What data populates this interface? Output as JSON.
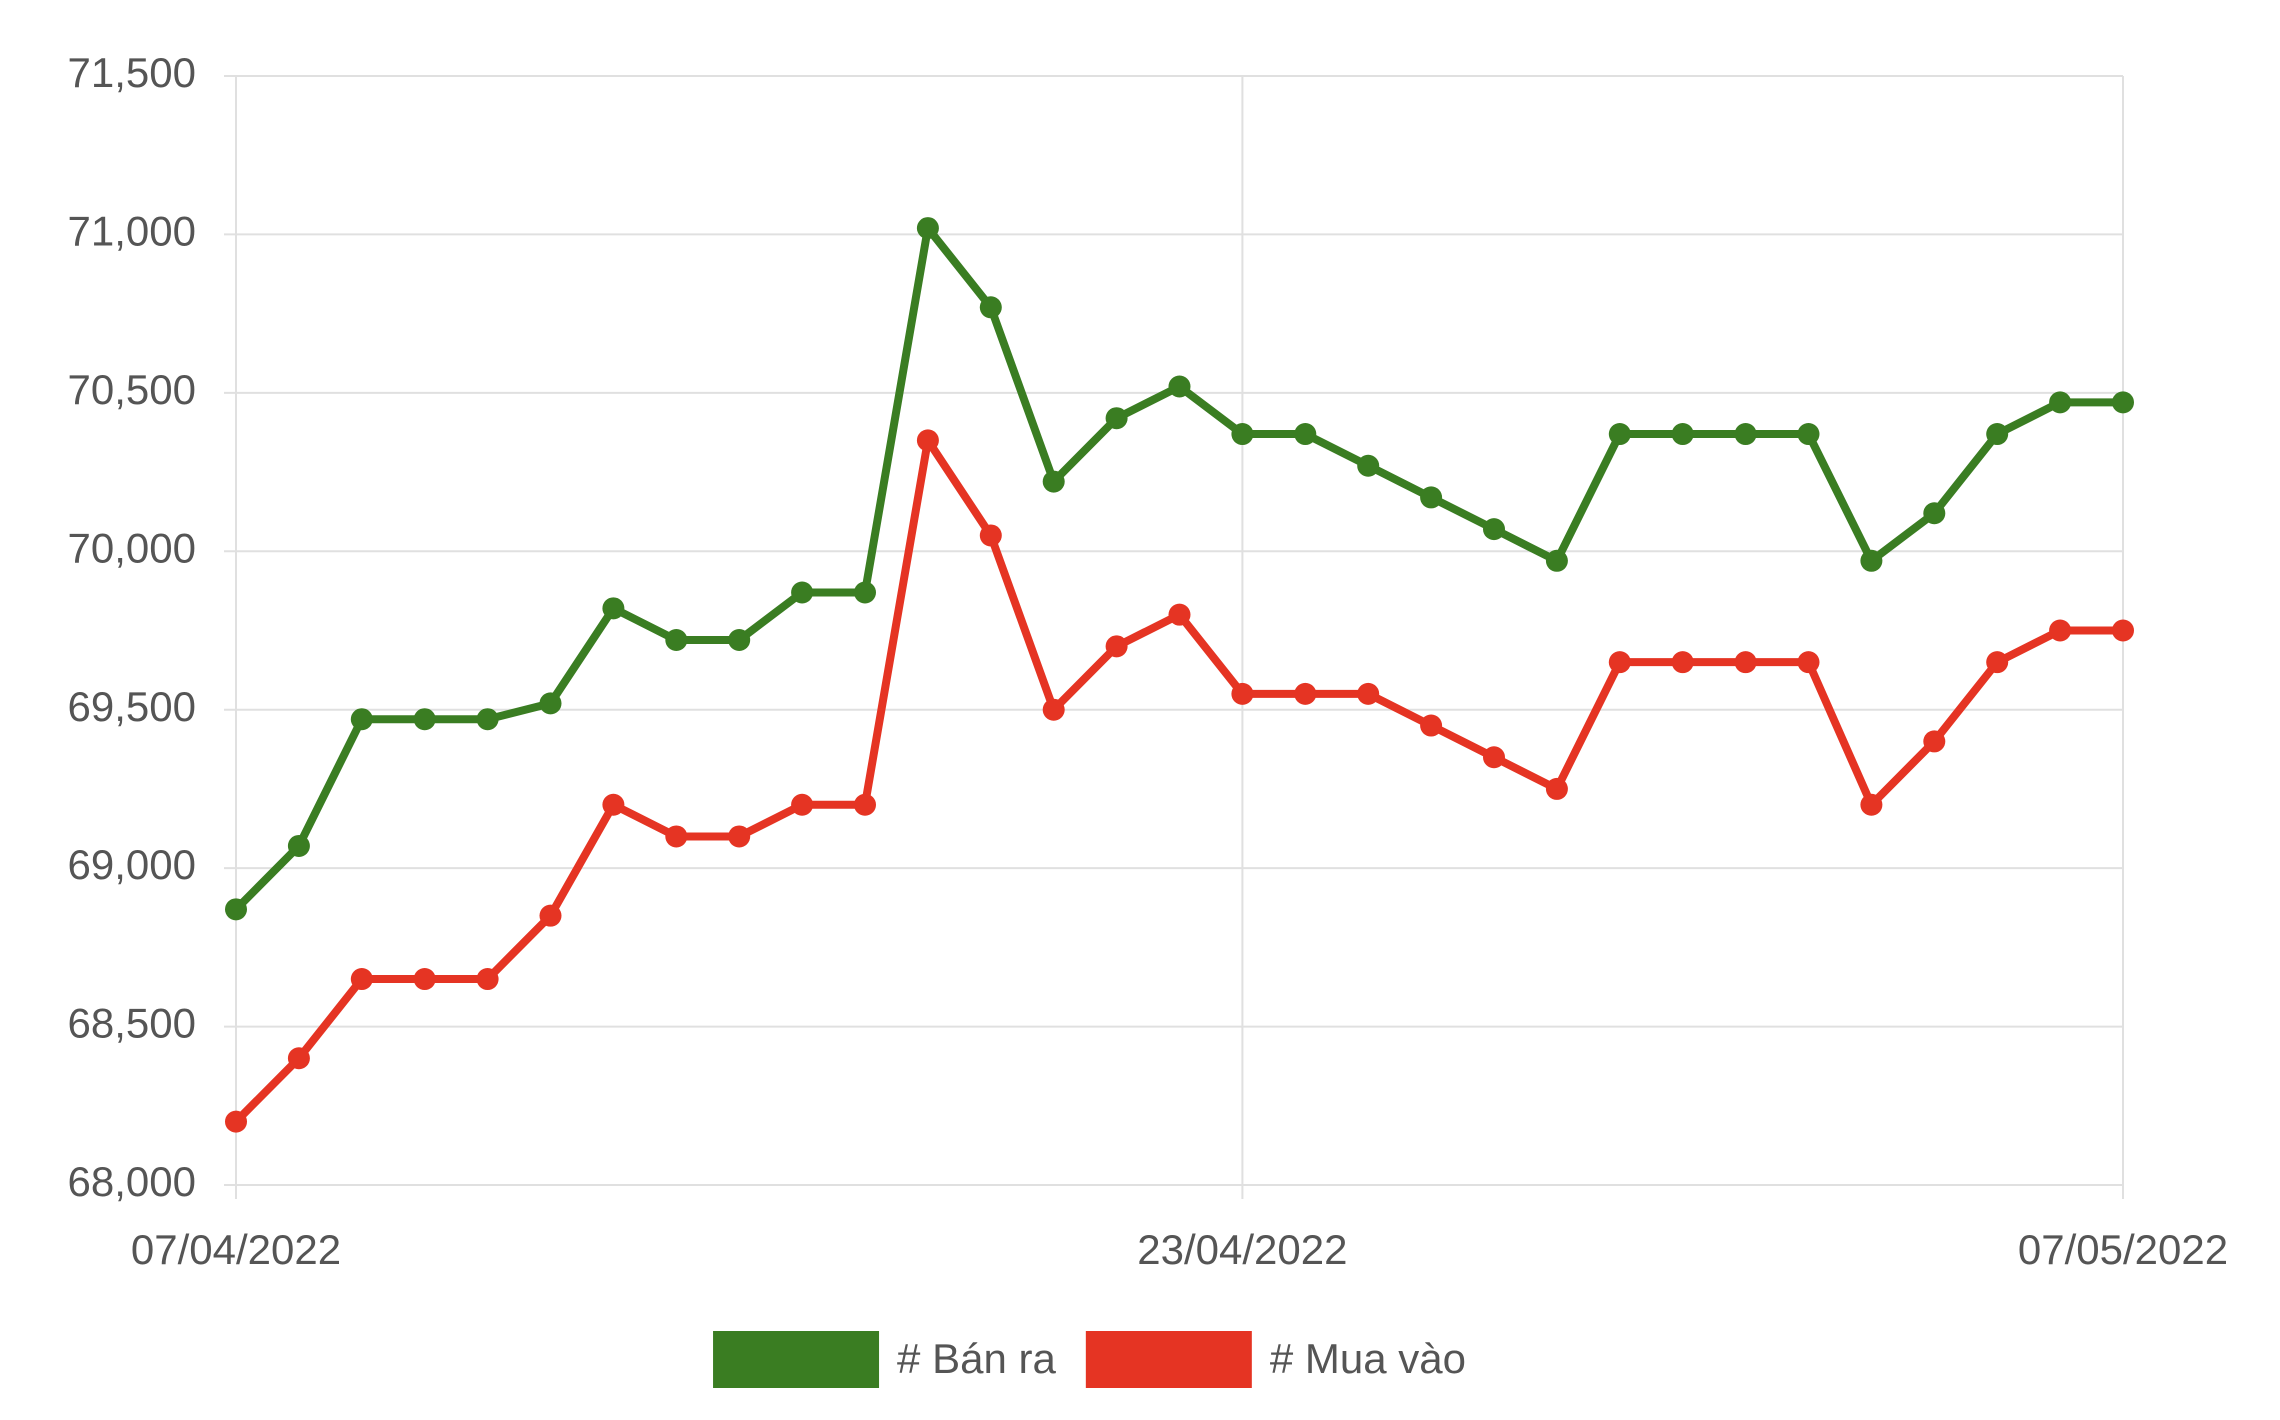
{
  "chart_data": {
    "type": "line",
    "x": [
      "07/04/2022",
      "08/04/2022",
      "09/04/2022",
      "10/04/2022",
      "11/04/2022",
      "12/04/2022",
      "13/04/2022",
      "14/04/2022",
      "15/04/2022",
      "16/04/2022",
      "17/04/2022",
      "18/04/2022",
      "19/04/2022",
      "20/04/2022",
      "21/04/2022",
      "22/04/2022",
      "23/04/2022",
      "24/04/2022",
      "25/04/2022",
      "26/04/2022",
      "27/04/2022",
      "28/04/2022",
      "29/04/2022",
      "30/04/2022",
      "01/05/2022",
      "02/05/2022",
      "03/05/2022",
      "04/05/2022",
      "05/05/2022",
      "06/05/2022",
      "07/05/2022"
    ],
    "xticks": [
      "07/04/2022",
      "23/04/2022",
      "07/05/2022"
    ],
    "series": [
      {
        "name": "# Bán ra",
        "color": "#3a7d22",
        "values": [
          68870,
          69070,
          69470,
          69470,
          69470,
          69520,
          69820,
          69720,
          69720,
          69870,
          69870,
          71020,
          70770,
          70220,
          70420,
          70520,
          70370,
          70370,
          70270,
          70170,
          70070,
          69970,
          70370,
          70370,
          70370,
          70370,
          69970,
          70120,
          70370,
          70470,
          70470
        ]
      },
      {
        "name": "# Mua vào",
        "color": "#e53423",
        "values": [
          68200,
          68400,
          68650,
          68650,
          68650,
          68850,
          69200,
          69100,
          69100,
          69200,
          69200,
          70350,
          70050,
          69500,
          69700,
          69800,
          69550,
          69550,
          69550,
          69450,
          69350,
          69250,
          69650,
          69650,
          69650,
          69650,
          69200,
          69400,
          69650,
          69750,
          69750
        ]
      }
    ],
    "ylim": [
      68000,
      71500
    ],
    "yticks": [
      {
        "value": 68000,
        "label": "68,000"
      },
      {
        "value": 68500,
        "label": "68,500"
      },
      {
        "value": 69000,
        "label": "69,000"
      },
      {
        "value": 69500,
        "label": "69,500"
      },
      {
        "value": 70000,
        "label": "70,000"
      },
      {
        "value": 70500,
        "label": "70,500"
      },
      {
        "value": 71000,
        "label": "71,000"
      },
      {
        "value": 71500,
        "label": "71,500"
      }
    ],
    "grid": true,
    "legend": "bottom"
  }
}
